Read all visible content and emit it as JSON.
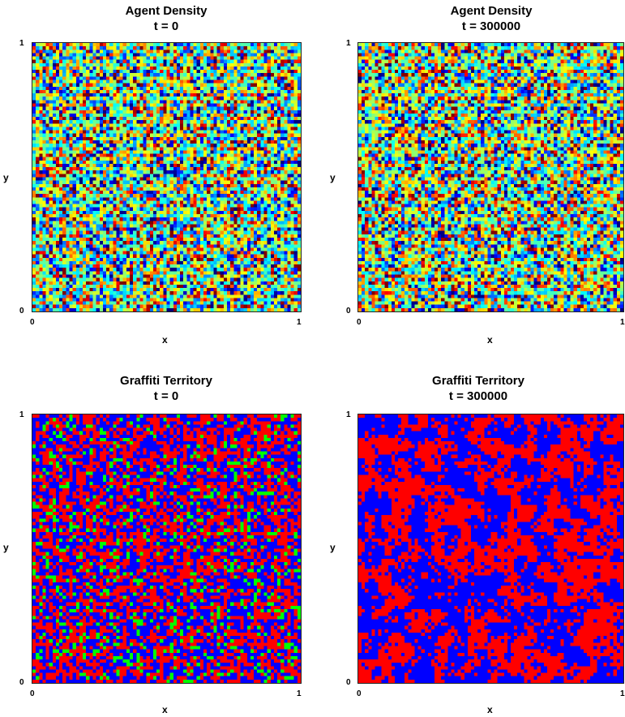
{
  "chart_data": [
    {
      "type": "heatmap",
      "title": "Agent Density",
      "subtitle": "t = 0",
      "xlabel": "x",
      "ylabel": "y",
      "xlim": [
        0,
        1
      ],
      "ylim": [
        0,
        1
      ],
      "xticks": [
        "0",
        "1"
      ],
      "yticks": [
        "0",
        "1"
      ],
      "grid_size": 80,
      "colormap": "jet",
      "pattern": "random noise, mostly green-yellow-cyan with scattered red and blue cells",
      "grid": false
    },
    {
      "type": "heatmap",
      "title": "Agent Density",
      "subtitle": "t = 300000",
      "xlabel": "x",
      "ylabel": "y",
      "xlim": [
        0,
        1
      ],
      "ylim": [
        0,
        1
      ],
      "xticks": [
        "0",
        "1"
      ],
      "yticks": [
        "0",
        "1"
      ],
      "grid_size": 80,
      "colormap": "jet",
      "pattern": "random noise, mostly green-yellow-cyan with scattered red and blue cells",
      "grid": false
    },
    {
      "type": "heatmap",
      "title": "Graffiti Territory",
      "subtitle": "t = 0",
      "xlabel": "x",
      "ylabel": "y",
      "xlim": [
        0,
        1
      ],
      "ylim": [
        0,
        1
      ],
      "xticks": [
        "0",
        "1"
      ],
      "yticks": [
        "0",
        "1"
      ],
      "grid_size": 80,
      "colors": [
        "#0000ff",
        "#ff0000",
        "#00ff00"
      ],
      "pattern": "random mix of blue and red cells with sparse green cells",
      "grid": false
    },
    {
      "type": "heatmap",
      "title": "Graffiti Territory",
      "subtitle": "t = 300000",
      "xlabel": "x",
      "ylabel": "y",
      "xlim": [
        0,
        1
      ],
      "ylim": [
        0,
        1
      ],
      "xticks": [
        "0",
        "1"
      ],
      "yticks": [
        "0",
        "1"
      ],
      "grid_size": 80,
      "colors": [
        "#0000ff",
        "#ff0000"
      ],
      "pattern": "segregated clusters of blue and red territory, no green",
      "grid": false
    }
  ]
}
